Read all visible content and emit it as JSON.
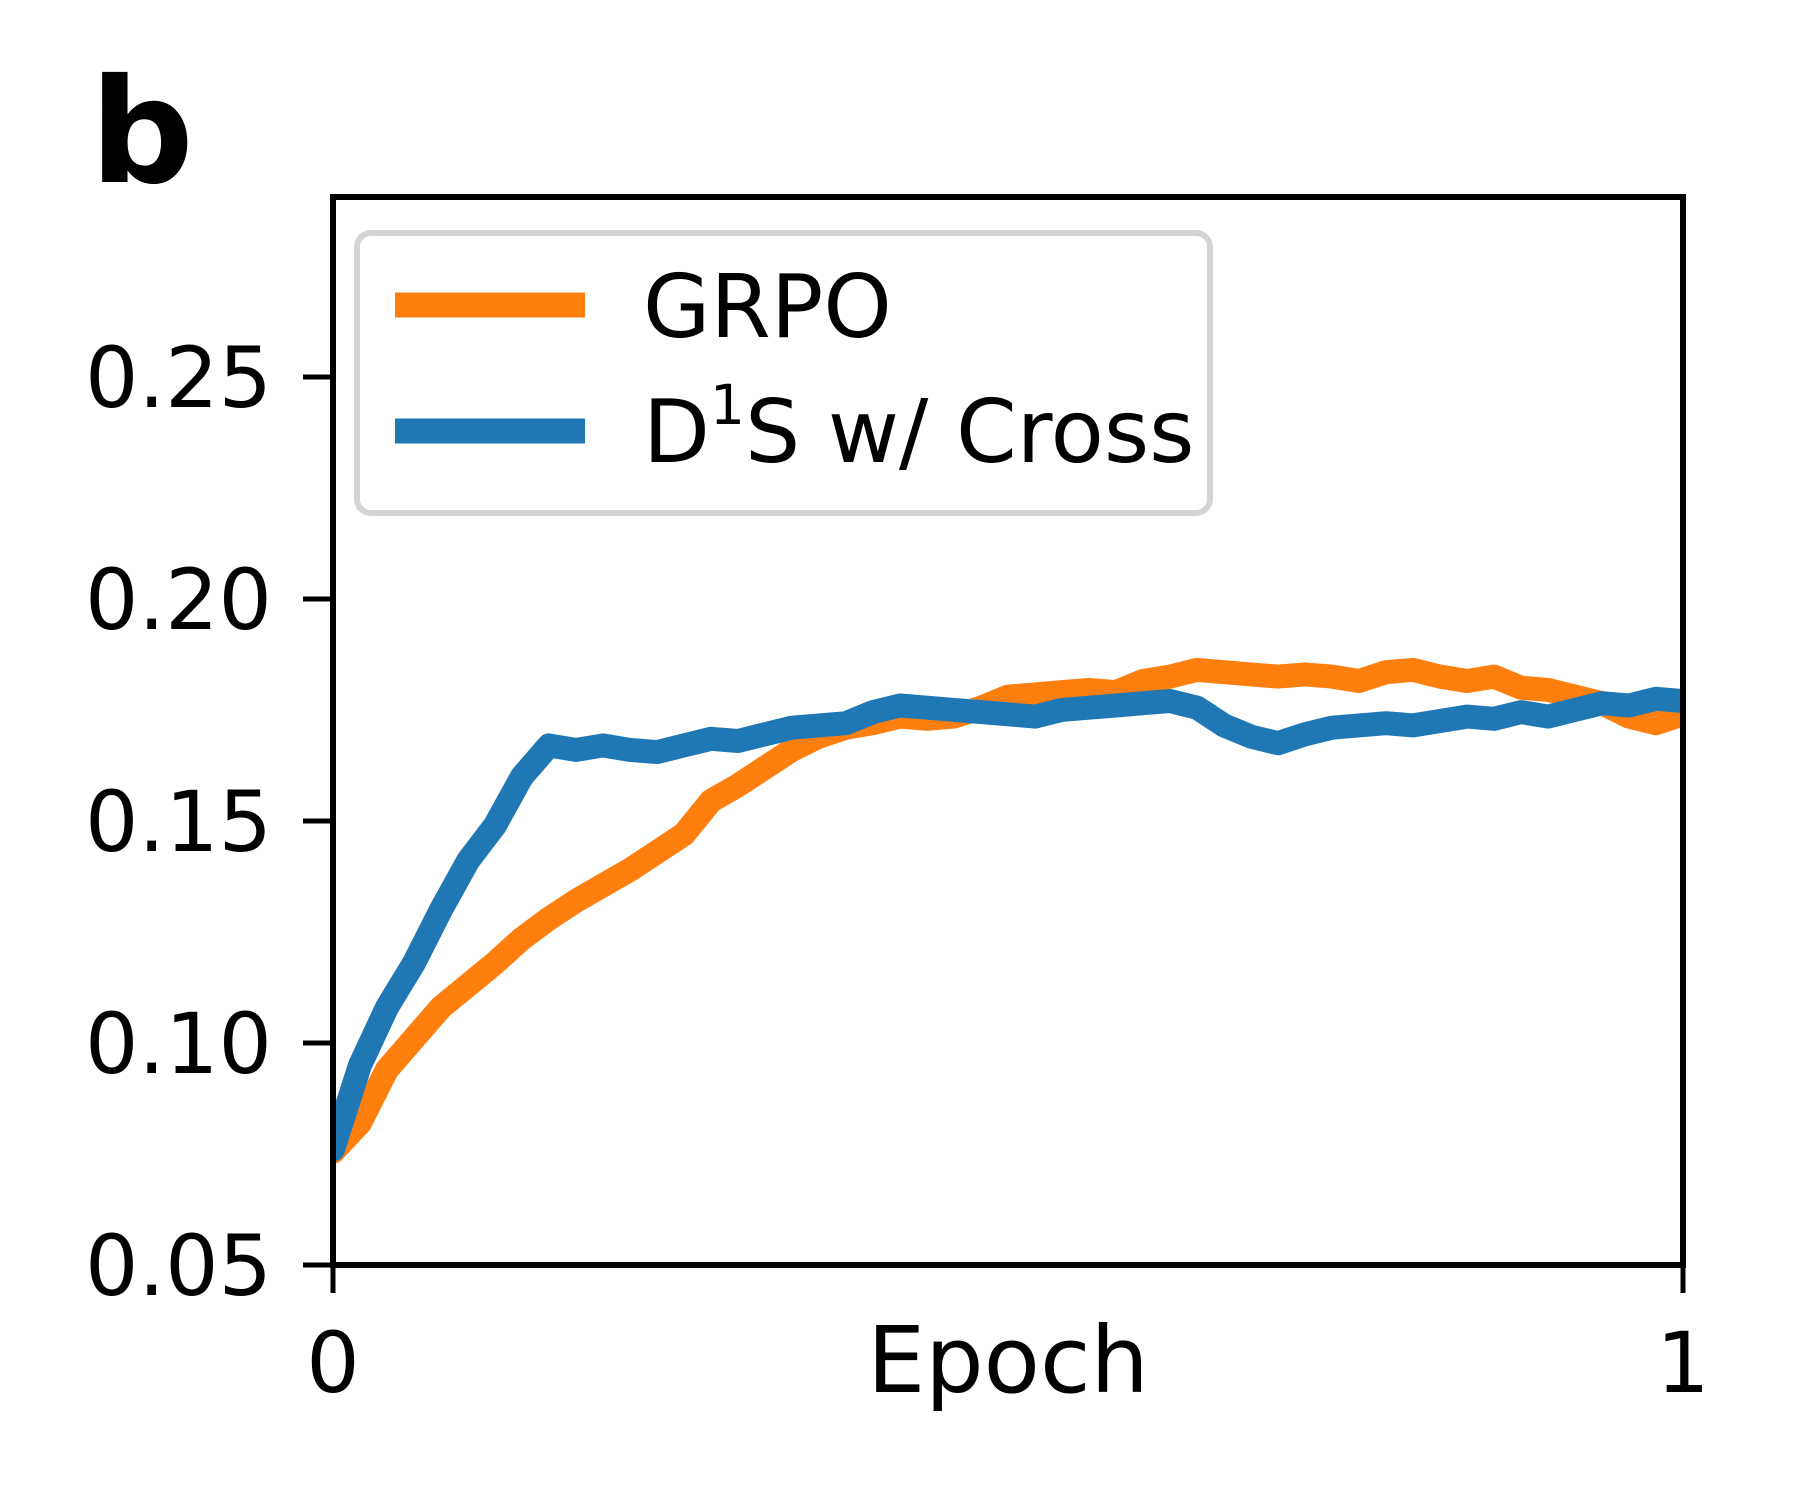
{
  "panel_label": "b",
  "chart_data": {
    "type": "line",
    "title": "",
    "xlabel": "Epoch",
    "xlim": [
      0,
      1
    ],
    "ylim": [
      0.05,
      0.2905
    ],
    "xticks": [
      "0",
      "1"
    ],
    "xtick_values": [
      0,
      1
    ],
    "yticks": [
      "0.05",
      "0.10",
      "0.15",
      "0.20",
      "0.25"
    ],
    "ytick_values": [
      0.05,
      0.1,
      0.15,
      0.2,
      0.25
    ],
    "grid": false,
    "legend_position": "upper left",
    "line_width": 24,
    "x": [
      0.0,
      0.02,
      0.04,
      0.06,
      0.08,
      0.1,
      0.12,
      0.14,
      0.16,
      0.18,
      0.2,
      0.22,
      0.24,
      0.26,
      0.28,
      0.3,
      0.32,
      0.34,
      0.36,
      0.38,
      0.4,
      0.42,
      0.44,
      0.46,
      0.48,
      0.5,
      0.52,
      0.54,
      0.56,
      0.58,
      0.6,
      0.62,
      0.64,
      0.66,
      0.68,
      0.7,
      0.72,
      0.74,
      0.76,
      0.78,
      0.8,
      0.82,
      0.84,
      0.86,
      0.88,
      0.9,
      0.92,
      0.94,
      0.96,
      0.98,
      1.0
    ],
    "series": [
      {
        "name": "GRPO",
        "color": "#ff7f0e",
        "values": [
          0.0755,
          0.082,
          0.094,
          0.101,
          0.108,
          0.113,
          0.118,
          0.1235,
          0.128,
          0.132,
          0.1355,
          0.139,
          0.143,
          0.147,
          0.1545,
          0.158,
          0.162,
          0.166,
          0.169,
          0.171,
          0.172,
          0.1735,
          0.173,
          0.1735,
          0.1755,
          0.178,
          0.1785,
          0.179,
          0.1795,
          0.179,
          0.1815,
          0.1825,
          0.184,
          0.1835,
          0.183,
          0.1825,
          0.183,
          0.1825,
          0.1815,
          0.1835,
          0.184,
          0.1825,
          0.1815,
          0.1825,
          0.18,
          0.1795,
          0.178,
          0.1765,
          0.1735,
          0.172,
          0.174
        ]
      },
      {
        "name": "D1S w/ Cross",
        "label_parts": {
          "prefix": "D",
          "sup": "1",
          "suffix": "S w/ Cross"
        },
        "color": "#1f77b4",
        "values": [
          0.076,
          0.095,
          0.108,
          0.118,
          0.13,
          0.141,
          0.149,
          0.16,
          0.167,
          0.166,
          0.167,
          0.166,
          0.1655,
          0.167,
          0.1685,
          0.168,
          0.1695,
          0.171,
          0.1715,
          0.172,
          0.1745,
          0.176,
          0.1755,
          0.175,
          0.1745,
          0.174,
          0.1735,
          0.175,
          0.1755,
          0.176,
          0.1765,
          0.177,
          0.1755,
          0.1715,
          0.169,
          0.1675,
          0.1695,
          0.171,
          0.1715,
          0.172,
          0.1715,
          0.1725,
          0.1735,
          0.173,
          0.1745,
          0.1735,
          0.175,
          0.1765,
          0.176,
          0.1775,
          0.177
        ]
      }
    ]
  },
  "legend": {
    "item1_label": "GRPO",
    "item2_prefix": "D",
    "item2_sup": "1",
    "item2_suffix": "S w/ Cross"
  }
}
